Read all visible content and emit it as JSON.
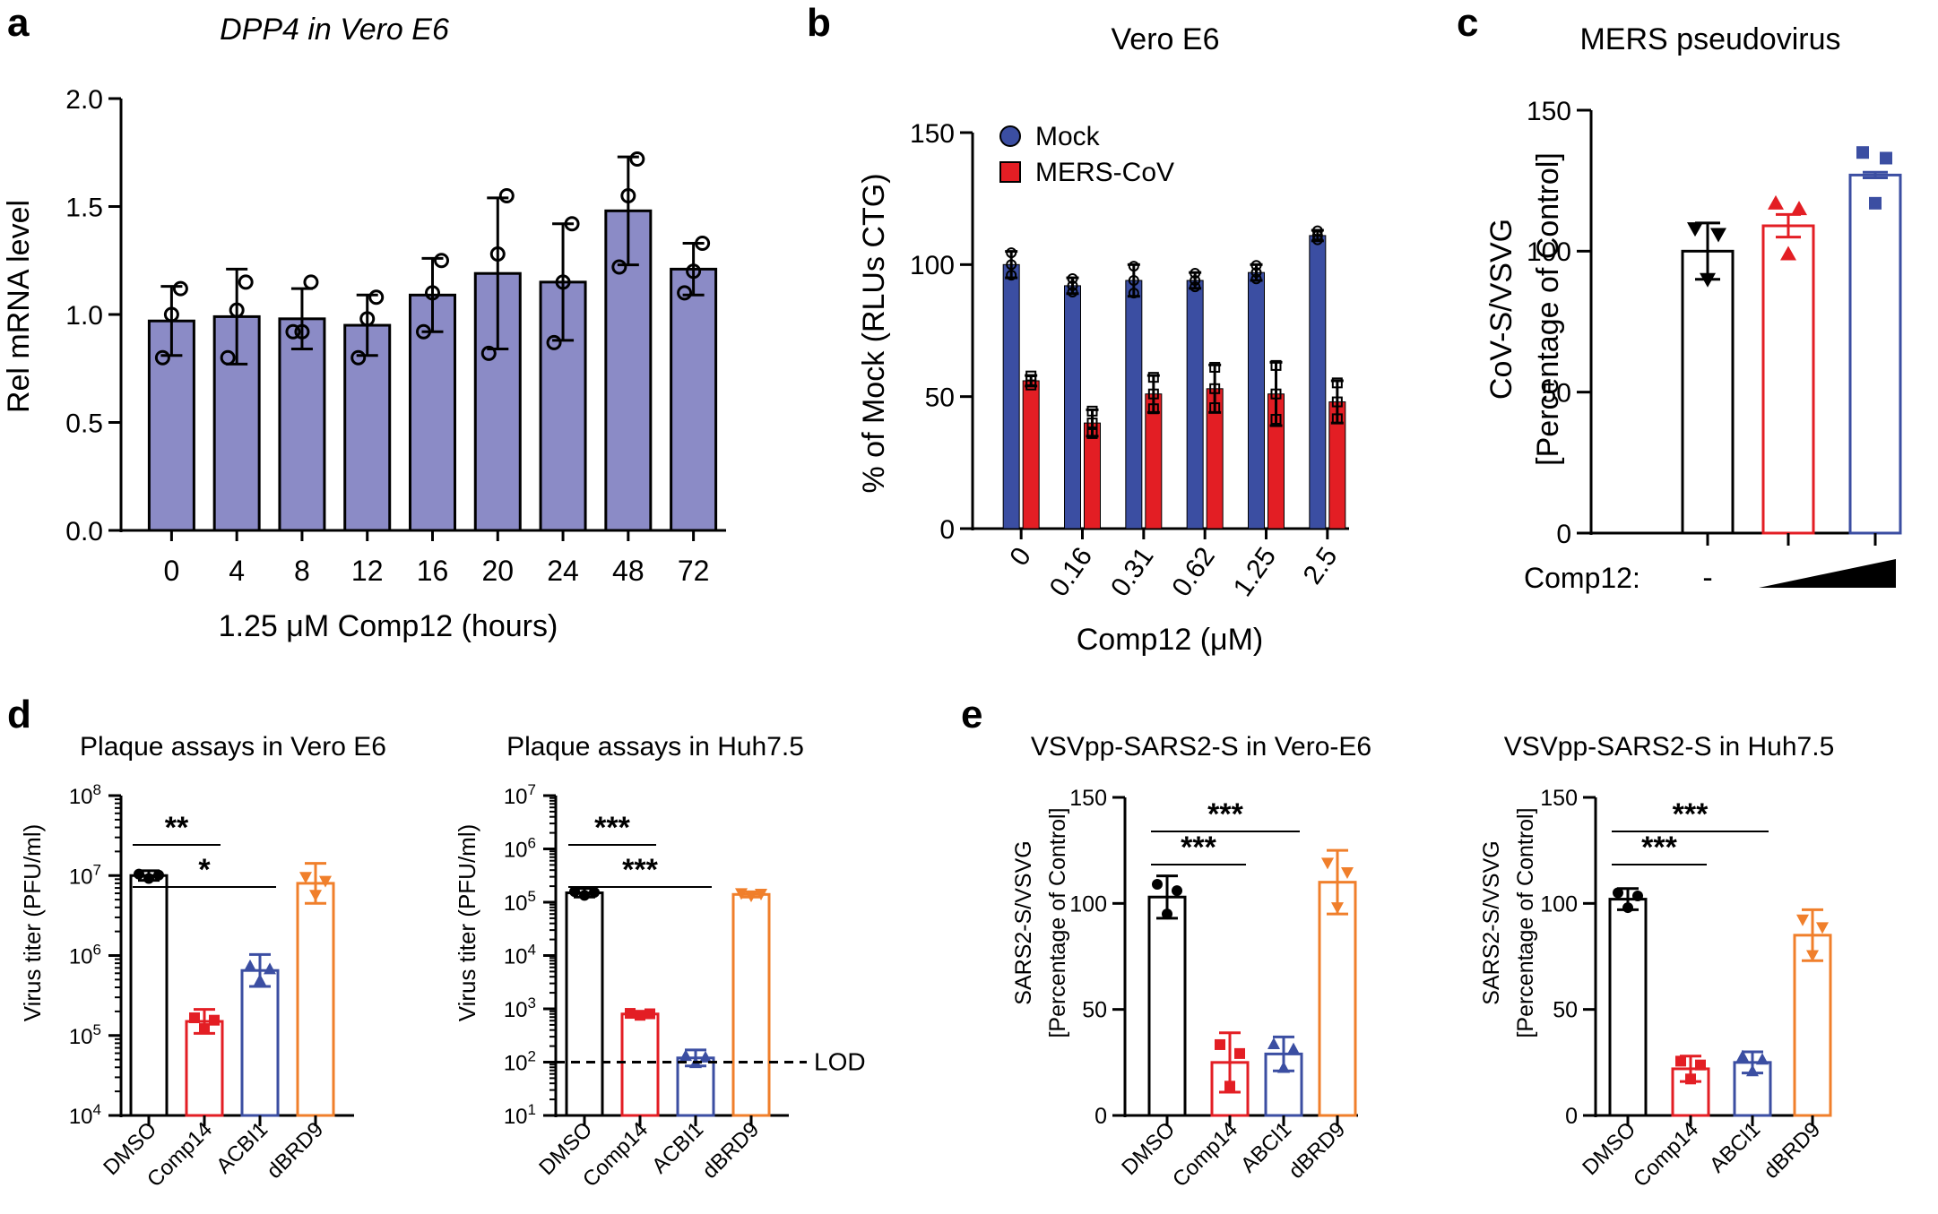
{
  "panel_letters": [
    "a",
    "b",
    "c",
    "d",
    "e"
  ],
  "chart_data": [
    {
      "id": "a",
      "type": "bar",
      "title": "DPP4 in Vero E6",
      "xlabel": "1.25 μM Comp12 (hours)",
      "ylabel": "Rel mRNA level",
      "categories": [
        "0",
        "4",
        "8",
        "12",
        "16",
        "20",
        "24",
        "48",
        "72"
      ],
      "values": [
        0.97,
        0.99,
        0.98,
        0.95,
        1.09,
        1.19,
        1.15,
        1.48,
        1.21
      ],
      "errors": [
        0.16,
        0.22,
        0.14,
        0.14,
        0.17,
        0.35,
        0.27,
        0.25,
        0.12
      ],
      "points": [
        [
          0.8,
          1.12,
          1.0
        ],
        [
          0.8,
          1.15,
          1.02
        ],
        [
          0.92,
          1.15,
          0.92
        ],
        [
          0.8,
          1.08,
          0.98
        ],
        [
          0.92,
          1.25,
          1.1
        ],
        [
          0.82,
          1.55,
          1.28
        ],
        [
          0.87,
          1.42,
          1.15
        ],
        [
          1.22,
          1.72,
          1.55
        ],
        [
          1.1,
          1.33,
          1.2
        ]
      ],
      "yticks": [
        "0.0",
        "0.5",
        "1.0",
        "1.5",
        "2.0"
      ],
      "ylim": [
        0,
        2.0
      ],
      "bar_color": "#8b8bc6"
    },
    {
      "id": "b",
      "type": "bar",
      "title": "Vero E6",
      "xlabel": "Comp12 (μM)",
      "ylabel": "% of Mock (RLUs CTG)",
      "categories": [
        "0",
        "0.16",
        "0.31",
        "0.62",
        "1.25",
        "2.5"
      ],
      "series": [
        {
          "name": "Mock",
          "color": "#3b4ea2",
          "values": [
            100,
            92,
            94,
            94,
            97,
            111
          ],
          "errors": [
            5,
            3,
            6,
            3,
            3,
            2
          ]
        },
        {
          "name": "MERS-CoV",
          "color": "#e31e24",
          "values": [
            56,
            40,
            51,
            53,
            51,
            48
          ],
          "errors": [
            2,
            5,
            7,
            9,
            12,
            8
          ]
        }
      ],
      "yticks": [
        "0",
        "50",
        "100",
        "150"
      ],
      "ylim": [
        0,
        150
      ]
    },
    {
      "id": "c",
      "type": "bar",
      "title": "MERS pseudovirus",
      "ylabel": "CoV-S/VSVG",
      "ylabel2": "[Percentage of Control]",
      "row_label": "Comp12:",
      "categories": [
        "-",
        "low",
        "high"
      ],
      "values": [
        100,
        109,
        127
      ],
      "errors": [
        10,
        4,
        1
      ],
      "colors": [
        "#000000",
        "#e31e24",
        "#3b4ea2"
      ],
      "yticks": [
        "0",
        "50",
        "100",
        "150"
      ],
      "ylim": [
        0,
        150
      ]
    },
    {
      "id": "d1",
      "type": "bar",
      "scale": "log",
      "title": "Plaque assays in Vero E6",
      "ylabel": "Virus titer (PFU/ml)",
      "categories": [
        "DMSO",
        "Comp14",
        "ACBI1",
        "dBRD9"
      ],
      "values": [
        10000000,
        150000,
        650000,
        8000000
      ],
      "errors_log": [
        0.06,
        0.15,
        0.2,
        0.25
      ],
      "colors": [
        "#000000",
        "#e31e24",
        "#3b4ea2",
        "#f07f2b"
      ],
      "ytick_exponents": [
        "4",
        "5",
        "6",
        "7",
        "8"
      ],
      "log_range": [
        4,
        8
      ],
      "significance": [
        {
          "from": 0,
          "to": 1,
          "label": "**"
        },
        {
          "from": 0,
          "to": 2,
          "label": "*"
        }
      ]
    },
    {
      "id": "d2",
      "type": "bar",
      "scale": "log",
      "title": "Plaque assays in Huh7.5",
      "ylabel": "Virus titer (PFU/ml)",
      "categories": [
        "DMSO",
        "Comp14",
        "ACBI1",
        "dBRD9"
      ],
      "values": [
        150000,
        800,
        120,
        140000
      ],
      "errors_log": [
        0.08,
        0.04,
        0.15,
        0.05
      ],
      "colors": [
        "#000000",
        "#e31e24",
        "#3b4ea2",
        "#f07f2b"
      ],
      "ytick_exponents": [
        "1",
        "2",
        "3",
        "4",
        "5",
        "6",
        "7"
      ],
      "log_range": [
        1,
        7
      ],
      "lod_value": 100,
      "lod_label": "LOD",
      "significance": [
        {
          "from": 0,
          "to": 1,
          "label": "***"
        },
        {
          "from": 0,
          "to": 2,
          "label": "***"
        }
      ]
    },
    {
      "id": "e1",
      "type": "bar",
      "title": "VSVpp-SARS2-S in Vero-E6",
      "ylabel": "SARS2-S/VSVG",
      "ylabel2": "[Percentage of Control]",
      "categories": [
        "DMSO",
        "Comp14",
        "ABCl1",
        "dBRD9"
      ],
      "values": [
        103,
        25,
        29,
        110
      ],
      "errors": [
        10,
        14,
        8,
        15
      ],
      "colors": [
        "#000000",
        "#e31e24",
        "#3b4ea2",
        "#f07f2b"
      ],
      "yticks": [
        "0",
        "50",
        "100",
        "150"
      ],
      "ylim": [
        0,
        150
      ],
      "significance": [
        {
          "from": 0,
          "to": 1,
          "label": "***"
        },
        {
          "from": 0,
          "to": 2,
          "label": "***"
        }
      ]
    },
    {
      "id": "e2",
      "type": "bar",
      "title": "VSVpp-SARS2-S in Huh7.5",
      "ylabel": "SARS2-S/VSVG",
      "ylabel2": "[Percentage of Control]",
      "categories": [
        "DMSO",
        "Comp14",
        "ABCl1",
        "dBRD9"
      ],
      "values": [
        102,
        22,
        25,
        85
      ],
      "errors": [
        5,
        6,
        5,
        12
      ],
      "colors": [
        "#000000",
        "#e31e24",
        "#3b4ea2",
        "#f07f2b"
      ],
      "yticks": [
        "0",
        "50",
        "100",
        "150"
      ],
      "ylim": [
        0,
        150
      ],
      "significance": [
        {
          "from": 0,
          "to": 1,
          "label": "***"
        },
        {
          "from": 0,
          "to": 2,
          "label": "***"
        }
      ]
    }
  ]
}
